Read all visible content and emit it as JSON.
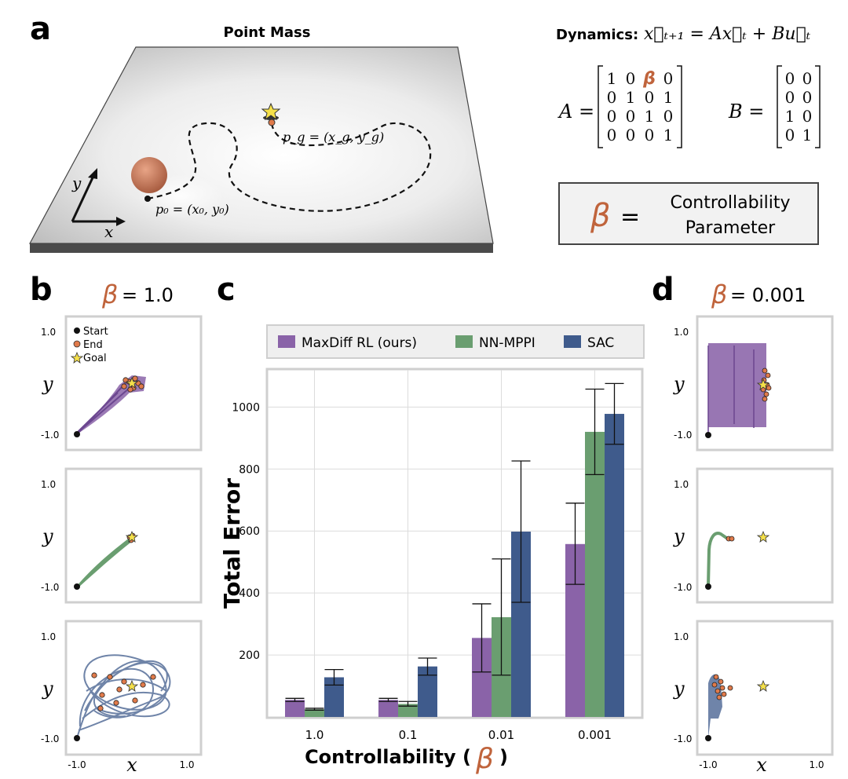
{
  "panel_a": {
    "letter": "a",
    "title": "Point Mass",
    "start_label": "p₀ = (x₀, y₀)",
    "goal_label": "p_g = (x_g, y_g)",
    "axis_x": "x",
    "axis_y": "y",
    "dynamics_label": "Dynamics:",
    "dynamics_eq": "x⃗ₜ₊₁ = Ax⃗ₜ + Bu⃗ₜ",
    "matrix_A_name": "A =",
    "matrix_A": [
      [
        "1",
        "0",
        "β",
        "0"
      ],
      [
        "0",
        "1",
        "0",
        "1"
      ],
      [
        "0",
        "0",
        "1",
        "0"
      ],
      [
        "0",
        "0",
        "0",
        "1"
      ]
    ],
    "matrix_B_name": "B =",
    "matrix_B": [
      [
        "0",
        "0"
      ],
      [
        "0",
        "0"
      ],
      [
        "1",
        "0"
      ],
      [
        "0",
        "1"
      ]
    ],
    "beta_symbol": "β",
    "box_eq": "=",
    "box_line1": "Controllability",
    "box_line2": "Parameter",
    "colors": {
      "beta": "#c0643c",
      "plane": "#d8d8d8",
      "ball": "#c8765a",
      "star": "#f5e04a"
    }
  },
  "panel_b": {
    "letter": "b",
    "beta_eq": "= 1.0",
    "legend": [
      "Start",
      "End",
      "Goal"
    ],
    "ytick_top": "1.0",
    "ytick_bottom": "-1.0",
    "ylabel": "y",
    "xtick_left": "-1.0",
    "xtick_right": "1.0",
    "xlabel": "x"
  },
  "panel_c": {
    "letter": "c",
    "legend": [
      "MaxDiff RL (ours)",
      "NN-MPPI",
      "SAC"
    ]
  },
  "panel_d": {
    "letter": "d",
    "beta_eq": "= 0.001",
    "ytick_top": "1.0",
    "ytick_bottom": "-1.0",
    "ylabel": "y",
    "xtick_left": "-1.0",
    "xtick_right": "1.0",
    "xlabel": "x"
  },
  "chart_data": {
    "type": "bar",
    "title": "",
    "xlabel": "Controllability (",
    "xlabel_symbol": "β",
    "xlabel_close": ")",
    "ylabel": "Total Error",
    "categories": [
      "1.0",
      "0.1",
      "0.01",
      "0.001"
    ],
    "yticks": [
      200,
      400,
      600,
      800,
      1000
    ],
    "ylim": [
      0,
      1120
    ],
    "grid": true,
    "legend_position": "top",
    "series": [
      {
        "name": "MaxDiff RL (ours)",
        "color": "#8a63a8",
        "values": [
          55,
          55,
          255,
          558
        ],
        "err_low": [
          50,
          50,
          145,
          428
        ],
        "err_high": [
          60,
          60,
          365,
          690
        ]
      },
      {
        "name": "NN-MPPI",
        "color": "#6a9e70",
        "values": [
          25,
          42,
          322,
          920
        ],
        "err_low": [
          22,
          35,
          135,
          782
        ],
        "err_high": [
          28,
          50,
          510,
          1058
        ]
      },
      {
        "name": "SAC",
        "color": "#3f5b8c",
        "values": [
          128,
          163,
          598,
          978
        ],
        "err_low": [
          103,
          135,
          370,
          880
        ],
        "err_high": [
          153,
          190,
          826,
          1076
        ]
      }
    ]
  }
}
